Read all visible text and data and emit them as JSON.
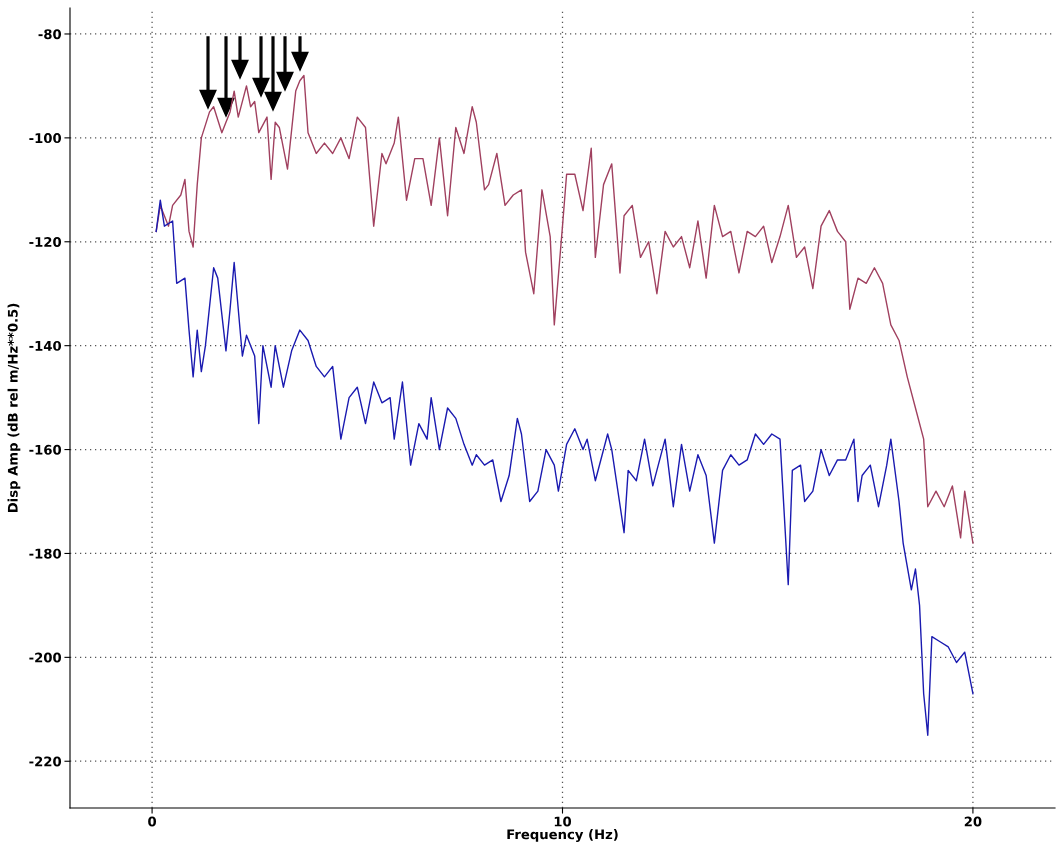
{
  "chart_data": {
    "type": "line",
    "xlabel": "Frequency (Hz)",
    "ylabel": "Disp Amp (dB rel m/Hz**0.5)",
    "xlim": [
      -2,
      22
    ],
    "ylim": [
      -229,
      -75
    ],
    "xticks": [
      0,
      10,
      20
    ],
    "yticks": [
      -80,
      -100,
      -120,
      -140,
      -160,
      -180,
      -200,
      -220
    ],
    "grid": true,
    "marker": "none",
    "line_style": "solid",
    "series": [
      {
        "color": "#a0405f",
        "x": [
          0.1,
          0.2,
          0.4,
          0.5,
          0.7,
          0.8,
          0.9,
          1.0,
          1.1,
          1.2,
          1.4,
          1.5,
          1.7,
          1.8,
          1.9,
          2.0,
          2.1,
          2.3,
          2.4,
          2.5,
          2.6,
          2.8,
          2.9,
          3.0,
          3.1,
          3.3,
          3.5,
          3.6,
          3.7,
          3.8,
          4.0,
          4.2,
          4.4,
          4.6,
          4.8,
          5.0,
          5.2,
          5.4,
          5.6,
          5.7,
          5.9,
          6.0,
          6.2,
          6.4,
          6.6,
          6.8,
          7.0,
          7.2,
          7.4,
          7.6,
          7.8,
          7.9,
          8.1,
          8.2,
          8.4,
          8.6,
          8.8,
          9.0,
          9.1,
          9.3,
          9.5,
          9.7,
          9.8,
          10.0,
          10.1,
          10.3,
          10.5,
          10.7,
          10.8,
          11.0,
          11.2,
          11.4,
          11.5,
          11.7,
          11.9,
          12.1,
          12.3,
          12.5,
          12.7,
          12.9,
          13.1,
          13.3,
          13.5,
          13.7,
          13.9,
          14.1,
          14.3,
          14.5,
          14.7,
          14.9,
          15.1,
          15.3,
          15.5,
          15.7,
          15.9,
          16.1,
          16.3,
          16.5,
          16.7,
          16.9,
          17.0,
          17.2,
          17.4,
          17.6,
          17.8,
          18.0,
          18.2,
          18.4,
          18.6,
          18.8,
          18.9,
          19.1,
          19.3,
          19.5,
          19.7,
          19.8,
          20.0
        ],
        "values": [
          -118,
          -113,
          -117,
          -113,
          -111,
          -108,
          -118,
          -121,
          -109,
          -100,
          -95,
          -94,
          -99,
          -97,
          -95,
          -91,
          -96,
          -90,
          -94,
          -93,
          -99,
          -96,
          -108,
          -97,
          -98,
          -106,
          -91,
          -89,
          -88,
          -99,
          -103,
          -101,
          -103,
          -100,
          -104,
          -96,
          -98,
          -117,
          -103,
          -105,
          -101,
          -96,
          -112,
          -104,
          -104,
          -113,
          -100,
          -115,
          -98,
          -103,
          -94,
          -97,
          -110,
          -109,
          -103,
          -113,
          -111,
          -110,
          -122,
          -130,
          -110,
          -119,
          -136,
          -117,
          -107,
          -107,
          -114,
          -102,
          -123,
          -109,
          -105,
          -126,
          -115,
          -113,
          -123,
          -120,
          -130,
          -118,
          -121,
          -119,
          -125,
          -116,
          -127,
          -113,
          -119,
          -118,
          -126,
          -118,
          -119,
          -117,
          -124,
          -119,
          -113,
          -123,
          -121,
          -129,
          -117,
          -114,
          -118,
          -120,
          -133,
          -127,
          -128,
          -125,
          -128,
          -136,
          -139,
          -146,
          -152,
          -158,
          -171,
          -168,
          -171,
          -167,
          -177,
          -168,
          -178
        ]
      },
      {
        "color": "#1a1ab0",
        "x": [
          0.1,
          0.2,
          0.3,
          0.5,
          0.6,
          0.8,
          0.9,
          1.0,
          1.1,
          1.2,
          1.3,
          1.5,
          1.6,
          1.8,
          1.9,
          2.0,
          2.2,
          2.3,
          2.5,
          2.6,
          2.7,
          2.9,
          3.0,
          3.2,
          3.4,
          3.6,
          3.8,
          4.0,
          4.2,
          4.4,
          4.6,
          4.8,
          5.0,
          5.2,
          5.4,
          5.6,
          5.8,
          5.9,
          6.1,
          6.3,
          6.5,
          6.7,
          6.8,
          7.0,
          7.2,
          7.4,
          7.6,
          7.8,
          7.9,
          8.1,
          8.3,
          8.5,
          8.7,
          8.9,
          9.0,
          9.2,
          9.4,
          9.6,
          9.8,
          9.9,
          10.1,
          10.3,
          10.5,
          10.6,
          10.8,
          11.1,
          11.2,
          11.5,
          11.6,
          11.8,
          12.0,
          12.2,
          12.5,
          12.7,
          12.9,
          13.1,
          13.3,
          13.5,
          13.7,
          13.9,
          14.1,
          14.3,
          14.5,
          14.7,
          14.9,
          15.1,
          15.3,
          15.5,
          15.6,
          15.8,
          15.9,
          16.1,
          16.3,
          16.5,
          16.7,
          16.9,
          17.1,
          17.2,
          17.3,
          17.5,
          17.7,
          17.9,
          18.0,
          18.2,
          18.3,
          18.5,
          18.6,
          18.7,
          18.8,
          18.9,
          19.0,
          19.2,
          19.4,
          19.6,
          19.8,
          20.0
        ],
        "values": [
          -118,
          -112,
          -117,
          -116,
          -128,
          -127,
          -137,
          -146,
          -137,
          -145,
          -140,
          -125,
          -127,
          -141,
          -133,
          -124,
          -142,
          -138,
          -142,
          -155,
          -140,
          -148,
          -140,
          -148,
          -141,
          -137,
          -139,
          -144,
          -146,
          -144,
          -158,
          -150,
          -148,
          -155,
          -147,
          -151,
          -150,
          -158,
          -147,
          -163,
          -155,
          -158,
          -150,
          -160,
          -152,
          -154,
          -159,
          -163,
          -161,
          -163,
          -162,
          -170,
          -165,
          -154,
          -157,
          -170,
          -168,
          -160,
          -163,
          -168,
          -159,
          -156,
          -160,
          -158,
          -166,
          -157,
          -160,
          -176,
          -164,
          -166,
          -158,
          -167,
          -158,
          -171,
          -159,
          -168,
          -161,
          -165,
          -178,
          -164,
          -161,
          -163,
          -162,
          -157,
          -159,
          -157,
          -158,
          -186,
          -164,
          -163,
          -170,
          -168,
          -160,
          -165,
          -162,
          -162,
          -158,
          -170,
          -165,
          -163,
          -171,
          -163,
          -158,
          -170,
          -178,
          -187,
          -183,
          -190,
          -207,
          -215,
          -196,
          -197,
          -198,
          -201,
          -199,
          -207
        ]
      }
    ]
  }
}
